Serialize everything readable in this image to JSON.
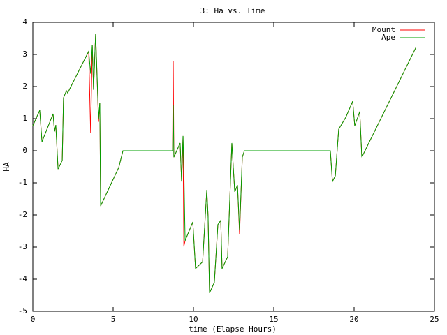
{
  "chart_data": {
    "type": "line",
    "title": "3: Ha vs. Time",
    "x_label": "time (Elapse Hours)",
    "y_label": "HA",
    "x": [
      0,
      0.43,
      0.57,
      1.26,
      1.35,
      1.43,
      1.57,
      1.83,
      1.91,
      2.09,
      2.17,
      3.48,
      3.6,
      3.7,
      3.78,
      3.91,
      4.09,
      4.17,
      4.22,
      5.35,
      5.61,
      8.7,
      8.74,
      8.78,
      9.17,
      9.26,
      9.35,
      9.4,
      9.48,
      9.96,
      10.13,
      10.57,
      10.83,
      10.91,
      11.0,
      11.3,
      11.52,
      11.7,
      11.78,
      12.13,
      12.39,
      12.57,
      12.74,
      12.87,
      13.04,
      13.17,
      18.52,
      18.65,
      18.83,
      19.04,
      19.48,
      19.91,
      20.04,
      20.35,
      20.48,
      23.87
    ],
    "series": [
      {
        "name": "Mount",
        "color": "#ff0000",
        "values": [
          0.78,
          1.26,
          0.28,
          1.15,
          0.6,
          0.8,
          -0.57,
          -0.3,
          1.65,
          1.87,
          1.8,
          3.1,
          0.55,
          3.3,
          1.9,
          3.65,
          0.9,
          1.5,
          -1.72,
          -0.52,
          0,
          0,
          2.8,
          -0.2,
          0.24,
          -0.96,
          0.46,
          -2.98,
          -2.8,
          -2.22,
          -3.67,
          -3.46,
          -1.22,
          -2.04,
          -4.43,
          -4.1,
          -2.3,
          -2.17,
          -3.67,
          -3.3,
          0.24,
          -1.28,
          -1.07,
          -2.6,
          -0.2,
          0,
          0,
          -0.96,
          -0.78,
          0.67,
          1.04,
          1.54,
          0.78,
          1.22,
          -0.2,
          3.24
        ]
      },
      {
        "name": "Ape",
        "color": "#00a000",
        "values": [
          0.78,
          1.26,
          0.28,
          1.15,
          0.6,
          0.8,
          -0.57,
          -0.3,
          1.65,
          1.87,
          1.8,
          3.1,
          2.4,
          3.3,
          1.9,
          3.65,
          1.0,
          1.5,
          -1.72,
          -0.52,
          0,
          0,
          1.43,
          -0.2,
          0.24,
          -0.96,
          0.46,
          -0.5,
          -2.8,
          -2.22,
          -3.67,
          -3.46,
          -1.22,
          -2.04,
          -4.43,
          -4.1,
          -2.3,
          -2.17,
          -3.67,
          -3.3,
          0.24,
          -1.28,
          -1.07,
          -2.48,
          -0.2,
          0,
          0,
          -0.96,
          -0.78,
          0.67,
          1.04,
          1.54,
          0.78,
          1.22,
          -0.2,
          3.24
        ]
      }
    ],
    "xlim": [
      0,
      25
    ],
    "xticks": [
      0,
      5,
      10,
      15,
      20,
      25
    ],
    "ylim": [
      -5,
      4
    ],
    "yticks": [
      -5,
      -4,
      -3,
      -2,
      -1,
      0,
      1,
      2,
      3,
      4
    ],
    "grid": false,
    "legend": "top-right"
  }
}
